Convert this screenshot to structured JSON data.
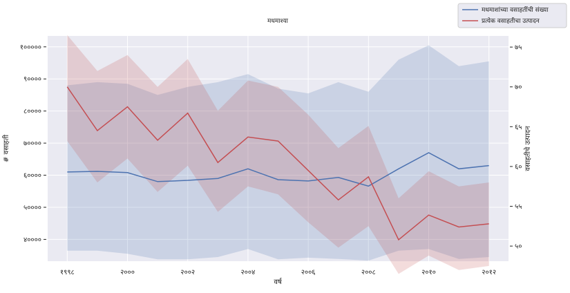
{
  "chart_data": {
    "type": "line",
    "title": "मधमाश्या",
    "xlabel": "वर्ष",
    "ylabel_left": "# वसाहती",
    "ylabel_right": "वसाहतीचे उत्पादन",
    "x": [
      1998,
      1999,
      2000,
      2001,
      2002,
      2003,
      2004,
      2005,
      2006,
      2007,
      2008,
      2009,
      2010,
      2011,
      2012
    ],
    "xlim": [
      1997.35,
      2012.65
    ],
    "x_ticks": [
      1998,
      2000,
      2002,
      2004,
      2006,
      2008,
      2010,
      2012
    ],
    "x_tick_labels": [
      "१९९८",
      "२०००",
      "२००२",
      "२००४",
      "२००६",
      "२००८",
      "२०१०",
      "२०१२"
    ],
    "y_left_lim": [
      33200,
      103400
    ],
    "y_left_ticks": [
      40000,
      50000,
      60000,
      70000,
      80000,
      90000,
      100000
    ],
    "y_left_tick_labels": [
      "४००००",
      "५००००",
      "६००००",
      "७००००",
      "८००००",
      "९००००",
      "१०००००"
    ],
    "y_right_lim": [
      48.1,
      76.4
    ],
    "y_right_ticks": [
      50,
      55,
      60,
      65,
      70,
      75
    ],
    "y_right_tick_labels": [
      "५०",
      "५५",
      "६०",
      "६५",
      "७०",
      "७५"
    ],
    "grid": true,
    "legend_position": "top-right",
    "series": [
      {
        "name": "मधमाशांच्या वसाहतींची संख्या",
        "axis": "left",
        "color": "#4c72b0",
        "values": [
          61000,
          61200,
          60800,
          58000,
          58400,
          59000,
          62000,
          58600,
          58200,
          59300,
          56600,
          62000,
          67000,
          62000,
          63000
        ],
        "band_upper": [
          88000,
          89000,
          88500,
          85000,
          87500,
          89000,
          91500,
          87000,
          85500,
          89000,
          86000,
          96000,
          100500,
          94000,
          95500
        ],
        "band_lower": [
          36500,
          36500,
          35500,
          33800,
          33800,
          34500,
          37000,
          33800,
          34300,
          33900,
          33400,
          36500,
          37000,
          33900,
          34500
        ]
      },
      {
        "name": "प्रत्येक वसाहतीचा उत्पादन",
        "axis": "right",
        "color": "#c44e52",
        "values": [
          70.0,
          64.5,
          67.5,
          63.3,
          66.7,
          60.5,
          63.7,
          63.2,
          59.5,
          55.8,
          58.7,
          50.8,
          53.9,
          52.4,
          52.8
        ],
        "band_upper": [
          76.5,
          72.0,
          74.0,
          70.0,
          73.5,
          67.0,
          70.8,
          70.0,
          66.5,
          62.3,
          65.1,
          56.0,
          59.4,
          57.5,
          58.0
        ],
        "band_lower": [
          63.2,
          58.0,
          61.0,
          56.8,
          60.1,
          54.3,
          57.5,
          56.5,
          53.0,
          49.8,
          52.5,
          46.5,
          48.8,
          47.0,
          47.5
        ]
      }
    ]
  }
}
